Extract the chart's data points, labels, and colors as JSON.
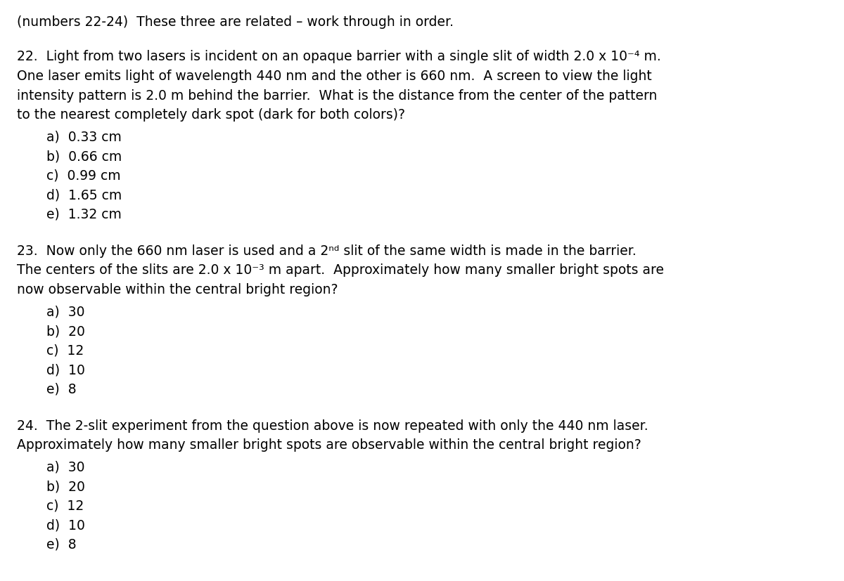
{
  "background_color": "#ffffff",
  "text_color": "#000000",
  "font_family": "DejaVu Sans",
  "font_size": 13.5,
  "header": "(numbers 22-24)  These three are related – work through in order.",
  "questions": [
    {
      "number": "22.",
      "lines": [
        "Light from two lasers is incident on an opaque barrier with a single slit of width 2.0 x 10⁻⁴ m.",
        "One laser emits light of wavelength 440 nm and the other is 660 nm.  A screen to view the light",
        "intensity pattern is 2.0 m behind the barrier.  What is the distance from the center of the pattern",
        "to the nearest completely dark spot (dark for both colors)?"
      ],
      "choices": [
        "a)  0.33 cm",
        "b)  0.66 cm",
        "c)  0.99 cm",
        "d)  1.65 cm",
        "e)  1.32 cm"
      ]
    },
    {
      "number": "23.",
      "lines": [
        "Now only the 660 nm laser is used and a 2ⁿᵈ slit of the same width is made in the barrier.",
        "The centers of the slits are 2.0 x 10⁻³ m apart.  Approximately how many smaller bright spots are",
        "now observable within the central bright region?"
      ],
      "choices": [
        "a)  30",
        "b)  20",
        "c)  12",
        "d)  10",
        "e)  8"
      ]
    },
    {
      "number": "24.",
      "lines": [
        "The 2-slit experiment from the question above is now repeated with only the 440 nm laser.",
        "Approximately how many smaller bright spots are observable within the central bright region?"
      ],
      "choices": [
        "a)  30",
        "b)  20",
        "c)  12",
        "d)  10",
        "e)  8"
      ]
    }
  ]
}
